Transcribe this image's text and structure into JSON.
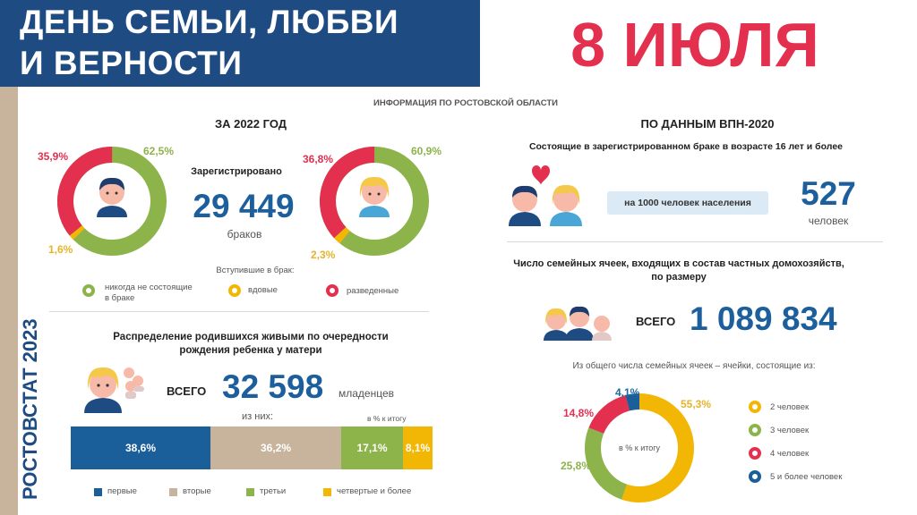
{
  "header": {
    "title_line1": "ДЕНЬ СЕМЬИ, ЛЮБВИ",
    "title_line2": "И ВЕРНОСТИ",
    "date": "8 ИЮЛЯ"
  },
  "side_label": "РОСТОВСТАТ 2023",
  "subtitle": "ИНФОРМАЦИЯ ПО РОСТОВСКОЙ ОБЛАСТИ",
  "colors": {
    "navy": "#1e4c82",
    "red": "#e3304e",
    "green": "#8db34b",
    "yellow": "#f2b705",
    "beige": "#c8b49c",
    "blue": "#1a5e9a"
  },
  "left": {
    "year_title": "ЗА 2022 ГОД",
    "registered_label": "Зарегистрировано",
    "registered_value": "29 449",
    "registered_unit": "браков",
    "entered_label": "Вступившие в брак:",
    "men_donut": {
      "never": "62,5%",
      "divorced": "35,9%",
      "widowed": "1,6%"
    },
    "women_donut": {
      "never": "60,9%",
      "divorced": "36,8%",
      "widowed": "2,3%"
    },
    "legend": {
      "never": "никогда не состоящие",
      "never2": "в браке",
      "widowed": "вдовые",
      "divorced": "разведенные"
    },
    "births_title1": "Распределение родившихся живыми по очередности",
    "births_title2": "рождения ребенка у матери",
    "total_label": "ВСЕГО",
    "births_value": "32 598",
    "births_unit": "младенцев",
    "of_them": "из них:",
    "pct_of_total": "в % к итогу",
    "bar": [
      {
        "label": "38,6%",
        "value": 38.6,
        "color": "#1a5e9a",
        "legend": "первые"
      },
      {
        "label": "36,2%",
        "value": 36.2,
        "color": "#c8b49c",
        "legend": "вторые"
      },
      {
        "label": "17,1%",
        "value": 17.1,
        "color": "#8db34b",
        "legend": "третьи"
      },
      {
        "label": "8,1%",
        "value": 8.1,
        "color": "#f2b705",
        "legend": "четвертые и более"
      }
    ]
  },
  "right": {
    "census_title": "ПО ДАННЫМ ВПН-2020",
    "married_title": "Состоящие в зарегистрированном браке в возрасте 16 лет и более",
    "per_1000": "на 1000 человек населения",
    "married_value": "527",
    "married_unit": "человек",
    "families_title1": "Число семейных ячеек, входящих в состав частных домохозяйств,",
    "families_title2": "по размеру",
    "total_label": "ВСЕГО",
    "families_value": "1 089 834",
    "families_note": "Из общего числа семейных ячеек – ячейки, состоящие из:",
    "donut_center": "в % к итогу",
    "families_chart": [
      {
        "label": "55,3%",
        "value": 55.3,
        "color": "#f2b705",
        "legend": "2 человек"
      },
      {
        "label": "25,8%",
        "value": 25.8,
        "color": "#8db34b",
        "legend": "3 человек"
      },
      {
        "label": "14,8%",
        "value": 14.8,
        "color": "#e3304e",
        "legend": "4 человек"
      },
      {
        "label": "4,1%",
        "value": 4.1,
        "color": "#1a5e9a",
        "legend": "5 и более человек"
      }
    ]
  }
}
